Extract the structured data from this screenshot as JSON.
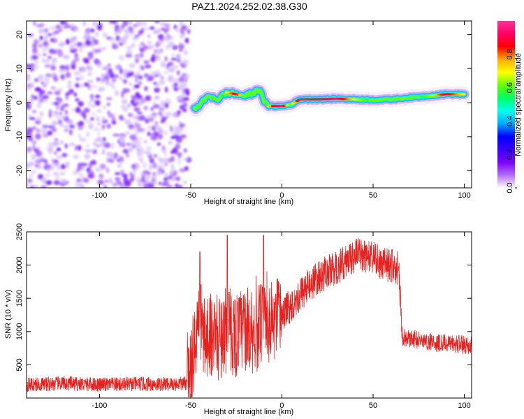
{
  "title": "PAZ1.2024.252.02.38.G30",
  "chart_data": [
    {
      "type": "heatmap",
      "xlabel": "Height of straight line (km)",
      "ylabel": "Frequency (Hz)",
      "xlim": [
        -140,
        104
      ],
      "ylim": [
        -25,
        24
      ],
      "xticks": [
        "-100",
        "-50",
        "0",
        "50",
        "100"
      ],
      "xtick_values": [
        -100,
        -50,
        0,
        50,
        100
      ],
      "yticks": [
        "20",
        "10",
        "0",
        "-10",
        "-20"
      ],
      "ytick_values": [
        20,
        10,
        0,
        -10,
        -20
      ],
      "colorbar": {
        "label": "Normalized spectral amplitude",
        "range": [
          0,
          1
        ],
        "ticks": [
          "0.0",
          "0.2",
          "0.4",
          "0.6",
          "0.8"
        ],
        "tick_values": [
          0,
          0.2,
          0.4,
          0.6,
          0.8
        ],
        "colormap": [
          "#ffffff",
          "#b36bff",
          "#7a00ff",
          "#3b00ff",
          "#0000ff",
          "#00aaff",
          "#00ffee",
          "#00ff66",
          "#66ff00",
          "#ffff00",
          "#ffaa00",
          "#ff0000",
          "#ff0066",
          "#ff3399"
        ]
      },
      "ridge": {
        "x": [
          -48,
          -44,
          -40,
          -35,
          -30,
          -25,
          -20,
          -15,
          -12,
          -10,
          -8,
          -5,
          0,
          5,
          10,
          20,
          30,
          40,
          50,
          60,
          70,
          80,
          90,
          100
        ],
        "freq": [
          -2,
          0,
          2,
          1,
          3,
          2.5,
          2,
          3,
          4,
          1,
          -1,
          -1,
          -1,
          -0.5,
          1,
          1,
          1.2,
          1,
          0.8,
          1,
          1.5,
          2,
          2.5,
          2.5
        ],
        "amplitude": [
          0.25,
          0.3,
          0.35,
          0.4,
          0.7,
          0.9,
          0.5,
          0.4,
          0.3,
          0.45,
          0.6,
          0.85,
          0.95,
          0.6,
          0.95,
          0.9,
          0.95,
          0.7,
          0.5,
          0.55,
          0.45,
          0.6,
          0.9,
          0.7
        ]
      },
      "noise_region": {
        "x_range": [
          -140,
          -55
        ],
        "amplitude": [
          0.05,
          0.2
        ]
      }
    },
    {
      "type": "line",
      "xlabel": "Height of straight line (km)",
      "ylabel": "SNR (10 * v/v)",
      "xlim": [
        -140,
        104
      ],
      "ylim": [
        0,
        2500
      ],
      "xticks": [
        "-100",
        "-50",
        "0",
        "50",
        "100"
      ],
      "xtick_values": [
        -100,
        -50,
        0,
        50,
        100
      ],
      "yticks": [
        "500",
        "1000",
        "1500",
        "2000",
        "2500"
      ],
      "ytick_values": [
        500,
        1000,
        1500,
        2000,
        2500
      ],
      "color": "#e8211e",
      "series": [
        {
          "x": [
            -140,
            -120,
            -100,
            -80,
            -60,
            -52,
            -50,
            -47,
            -45,
            -43,
            -40,
            -35,
            -30,
            -25,
            -20,
            -15,
            -10,
            -5,
            0,
            5,
            10,
            15,
            20,
            25,
            30,
            35,
            40,
            45,
            50,
            55,
            60,
            64,
            65,
            66,
            70,
            80,
            90,
            100,
            104
          ],
          "values": [
            200,
            220,
            200,
            210,
            210,
            220,
            400,
            900,
            1300,
            900,
            1000,
            900,
            1000,
            950,
            1050,
            1000,
            1150,
            1100,
            1250,
            1400,
            1550,
            1700,
            1800,
            1900,
            1950,
            2050,
            2150,
            2150,
            2100,
            2000,
            2000,
            1950,
            1500,
            900,
            900,
            850,
            820,
            800,
            800
          ],
          "peaks": {
            "x": [
              -45,
              -30,
              -10
            ],
            "values": [
              2200,
              2450,
              2450
            ]
          }
        }
      ]
    }
  ]
}
